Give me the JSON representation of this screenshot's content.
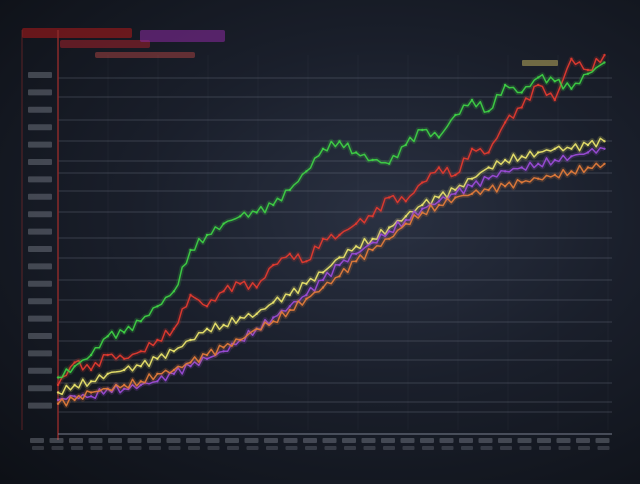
{
  "chart_data": {
    "type": "line",
    "title": "",
    "xlabel": "",
    "ylabel": "",
    "grid": true,
    "legend": "none",
    "background": "#1b2030",
    "colors": {
      "grid": "#7a8090",
      "axis": "#8a2a2a",
      "label": "#9aa0ad",
      "title": "#b11a1a"
    },
    "xlim": [
      0,
      100
    ],
    "ylim": [
      0,
      100
    ],
    "series": [
      {
        "color": "#e03a2f",
        "x": [
          0,
          3,
          6,
          9,
          12,
          15,
          18,
          21,
          24,
          27,
          30,
          33,
          36,
          39,
          42,
          45,
          48,
          51,
          54,
          57,
          60,
          63,
          66,
          69,
          72,
          75,
          78,
          81,
          84,
          87,
          90,
          93,
          96,
          99
        ],
        "y": [
          12,
          18,
          16,
          20,
          19,
          21,
          24,
          27,
          36,
          33,
          37,
          39,
          38,
          44,
          47,
          45,
          51,
          52,
          55,
          57,
          62,
          61,
          66,
          70,
          68,
          75,
          74,
          82,
          86,
          92,
          88,
          99,
          96,
          100
        ]
      },
      {
        "color": "#3ecf45",
        "x": [
          0,
          3,
          6,
          9,
          12,
          15,
          18,
          21,
          24,
          27,
          30,
          33,
          36,
          39,
          42,
          45,
          48,
          51,
          54,
          57,
          60,
          63,
          66,
          69,
          72,
          75,
          78,
          81,
          84,
          87,
          90,
          93,
          96,
          99
        ],
        "y": [
          14,
          17,
          20,
          25,
          26,
          29,
          33,
          37,
          48,
          52,
          55,
          57,
          58,
          60,
          64,
          69,
          75,
          77,
          74,
          72,
          71,
          76,
          80,
          78,
          84,
          88,
          85,
          92,
          90,
          94,
          93,
          91,
          95,
          98
        ]
      },
      {
        "color": "#e8e26a",
        "x": [
          0,
          3,
          6,
          9,
          12,
          15,
          18,
          21,
          24,
          27,
          30,
          33,
          36,
          39,
          42,
          45,
          48,
          51,
          54,
          57,
          60,
          63,
          66,
          69,
          72,
          75,
          78,
          81,
          84,
          87,
          90,
          93,
          96,
          99
        ],
        "y": [
          10,
          12,
          13,
          15,
          16,
          17,
          19,
          21,
          24,
          27,
          28,
          30,
          31,
          34,
          36,
          39,
          42,
          46,
          49,
          51,
          54,
          57,
          60,
          62,
          64,
          67,
          70,
          72,
          73,
          74,
          75,
          75,
          76,
          77
        ]
      },
      {
        "color": "#9a4bd6",
        "x": [
          0,
          3,
          6,
          9,
          12,
          15,
          18,
          21,
          24,
          27,
          30,
          33,
          36,
          39,
          42,
          45,
          48,
          51,
          54,
          57,
          60,
          63,
          66,
          69,
          72,
          75,
          78,
          81,
          84,
          87,
          90,
          93,
          96,
          99
        ],
        "y": [
          8,
          9,
          9,
          11,
          11,
          12,
          13,
          15,
          17,
          19,
          21,
          24,
          27,
          30,
          33,
          36,
          40,
          44,
          47,
          50,
          53,
          56,
          59,
          61,
          63,
          65,
          67,
          69,
          70,
          71,
          72,
          73,
          74,
          75
        ]
      },
      {
        "color": "#e07a3a",
        "x": [
          0,
          3,
          6,
          9,
          12,
          15,
          18,
          21,
          24,
          27,
          30,
          33,
          36,
          39,
          42,
          45,
          48,
          51,
          54,
          57,
          60,
          63,
          66,
          69,
          72,
          75,
          78,
          81,
          84,
          87,
          90,
          93,
          96,
          99
        ],
        "y": [
          7,
          8,
          10,
          11,
          12,
          13,
          15,
          16,
          18,
          20,
          22,
          24,
          27,
          29,
          32,
          35,
          38,
          41,
          45,
          48,
          51,
          55,
          58,
          60,
          62,
          63,
          64,
          65,
          66,
          67,
          68,
          69,
          70,
          71
        ]
      }
    ]
  }
}
